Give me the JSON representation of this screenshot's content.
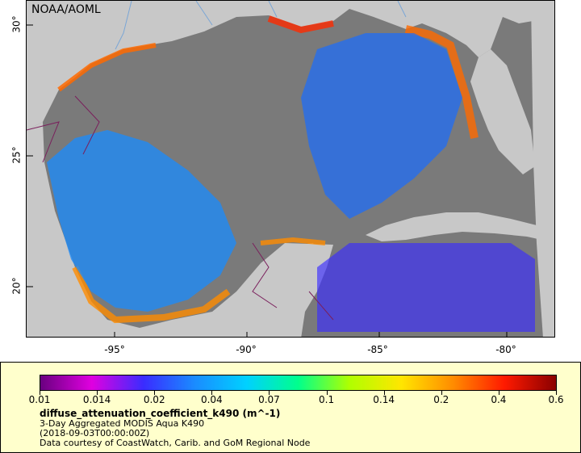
{
  "map": {
    "credit": "NOAA/AOML",
    "lon_ticks": [
      {
        "value": -95,
        "label": "-95°"
      },
      {
        "value": -90,
        "label": "-90°"
      },
      {
        "value": -85,
        "label": "-85°"
      },
      {
        "value": -80,
        "label": "-80°"
      }
    ],
    "lat_ticks": [
      {
        "value": 30,
        "label": "30°"
      },
      {
        "value": 25,
        "label": "25°"
      },
      {
        "value": 20,
        "label": "20°"
      }
    ],
    "extent": {
      "lon_min": -98.0,
      "lon_max": -78.0,
      "lat_min": 18.0,
      "lat_max": 31.0
    },
    "colors": {
      "no_data": "#7a7a7a",
      "land": "#c8c8c8",
      "borders": "#7a1f5c",
      "rivers": "#7aa6d6"
    }
  },
  "legend": {
    "ticks": [
      "0.01",
      "0.014",
      "0.02",
      "0.04",
      "0.07",
      "0.1",
      "0.14",
      "0.2",
      "0.4",
      "0.6"
    ],
    "palette": [
      "#6a0080",
      "#e000e0",
      "#3a2cff",
      "#1a8cff",
      "#00d1ff",
      "#00ff8c",
      "#b0ff00",
      "#ffe600",
      "#ff8c00",
      "#ff1a00",
      "#8a0000"
    ],
    "title": "diffuse_attenuation_coefficient_k490 (m^-1)",
    "line1": "3-Day Aggregated MODIS Aqua K490",
    "line2": "(2018-09-03T00:00:00Z)",
    "line3": "Data courtesy of CoastWatch, Carib. and GoM Regional Node"
  }
}
